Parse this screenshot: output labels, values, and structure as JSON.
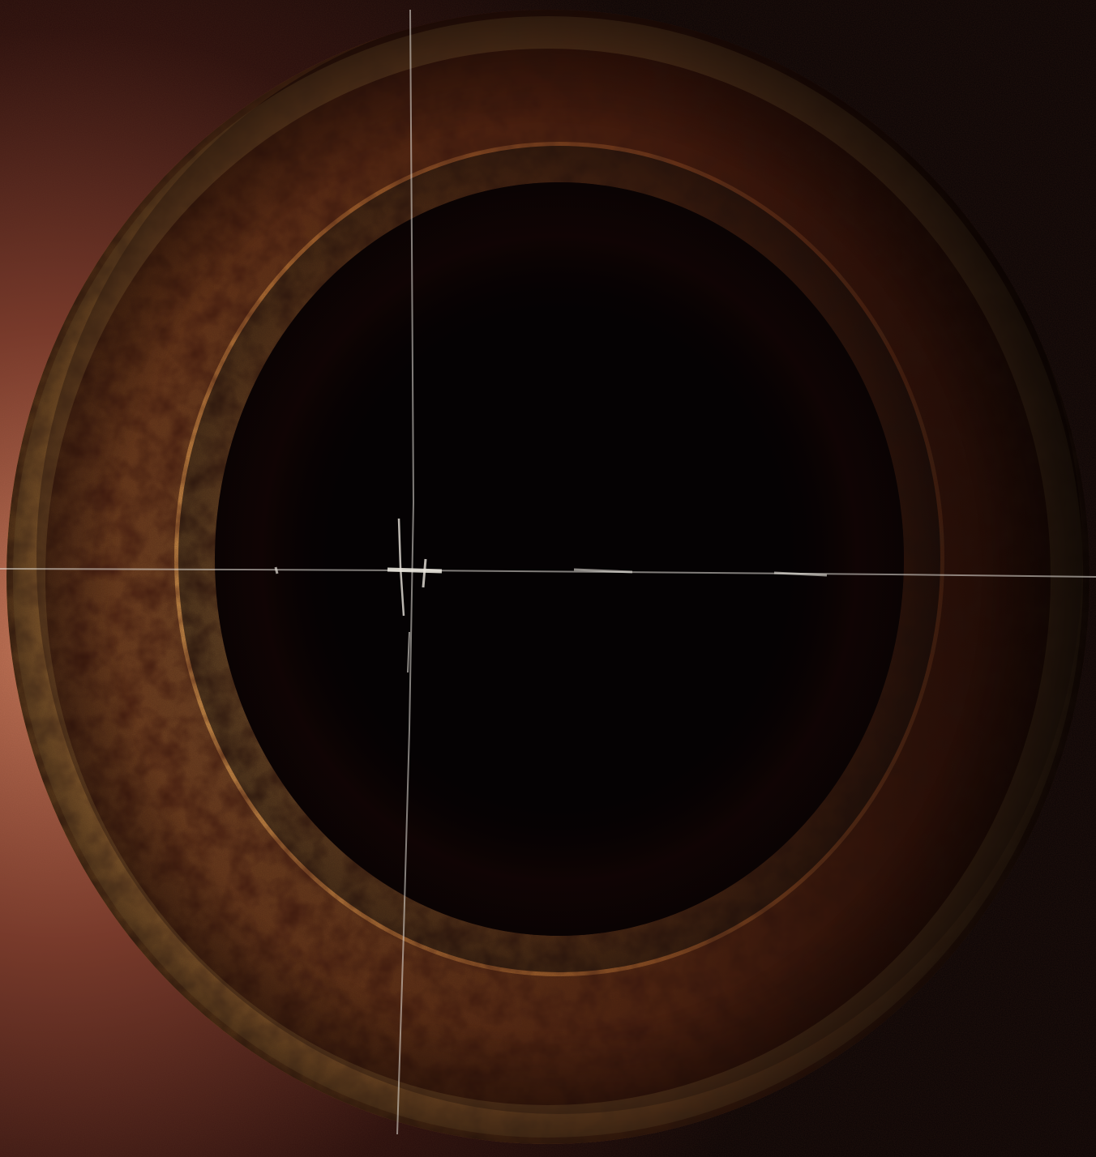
{
  "image": {
    "subject": "ring-object",
    "colors": {
      "background_dark": "#0a0405",
      "background_glow": "#b86a4e",
      "ring_light": "#d89a4a",
      "ring_mid": "#a8602a",
      "ring_dark": "#3a1208",
      "hole": "#050203",
      "crease": "#e8e4dc"
    }
  }
}
